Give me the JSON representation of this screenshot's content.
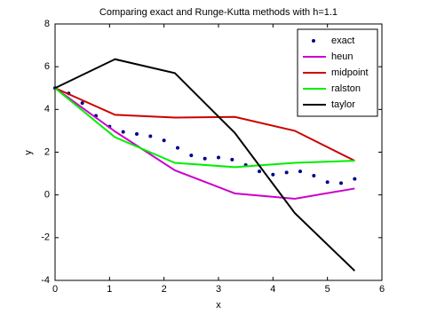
{
  "chart_data": {
    "type": "line",
    "title": "Comparing exact and Runge-Kutta methods with h=1.1",
    "x_label": "x",
    "y_label": "y",
    "xlim": [
      0,
      6
    ],
    "ylim": [
      -4,
      8
    ],
    "xticks": [
      0,
      1,
      2,
      3,
      4,
      5,
      6
    ],
    "yticks": [
      -4,
      -2,
      0,
      2,
      4,
      6,
      8
    ],
    "legend_position": "upper right",
    "series": [
      {
        "name": "exact",
        "color": "#00008b",
        "style": "dots",
        "x": [
          0,
          0.25,
          0.5,
          0.75,
          1.0,
          1.25,
          1.5,
          1.75,
          2.0,
          2.25,
          2.5,
          2.75,
          3.0,
          3.25,
          3.5,
          3.75,
          4.0,
          4.25,
          4.5,
          4.75,
          5.0,
          5.25,
          5.5
        ],
        "values": [
          5,
          4.75,
          4.3,
          3.7,
          3.2,
          2.95,
          2.85,
          2.75,
          2.55,
          2.2,
          1.85,
          1.7,
          1.75,
          1.65,
          1.4,
          1.1,
          0.95,
          1.05,
          1.1,
          0.9,
          0.6,
          0.55,
          0.75
        ]
      },
      {
        "name": "heun",
        "color": "#cc00cc",
        "style": "line",
        "x": [
          0,
          1.1,
          2.2,
          3.3,
          4.4,
          5.5
        ],
        "values": [
          5,
          2.97,
          1.15,
          0.07,
          -0.18,
          0.3
        ]
      },
      {
        "name": "midpoint",
        "color": "#cc0000",
        "style": "line",
        "x": [
          0,
          1.1,
          2.2,
          3.3,
          4.4,
          5.5
        ],
        "values": [
          5,
          3.75,
          3.62,
          3.65,
          3.0,
          1.6
        ]
      },
      {
        "name": "ralston",
        "color": "#00ee00",
        "style": "line",
        "x": [
          0,
          1.1,
          2.2,
          3.3,
          4.4,
          5.5
        ],
        "values": [
          5,
          2.7,
          1.5,
          1.3,
          1.5,
          1.6
        ]
      },
      {
        "name": "taylor",
        "color": "#000000",
        "style": "line",
        "x": [
          0,
          1.1,
          2.2,
          3.3,
          4.4,
          5.5
        ],
        "values": [
          5,
          6.35,
          5.7,
          2.9,
          -0.85,
          -3.55
        ]
      }
    ]
  }
}
